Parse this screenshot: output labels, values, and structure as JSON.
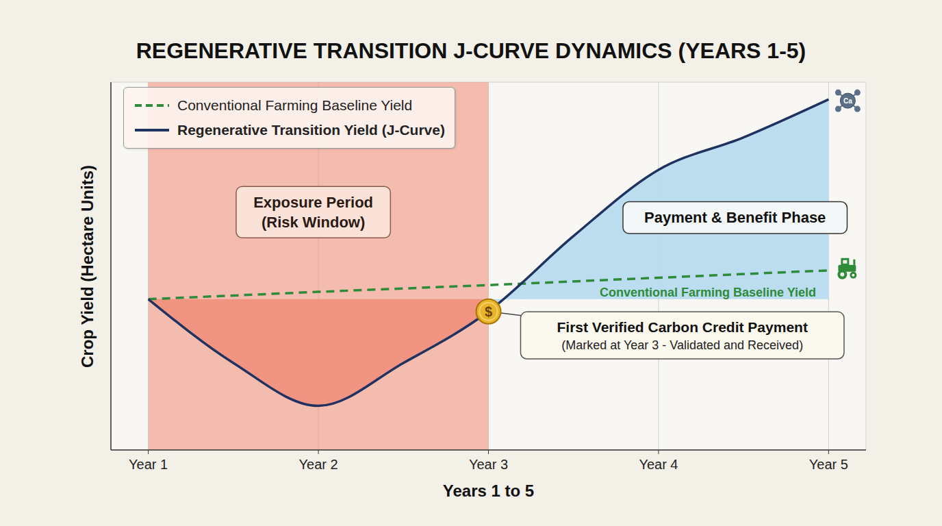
{
  "chart_data": {
    "type": "line",
    "title": "REGENERATIVE TRANSITION J-CURVE DYNAMICS (YEARS 1-5)",
    "x_label": "Years 1 to 5",
    "y_label": "Crop Yield (Hectare Units)",
    "xlim": [
      0.78,
      5.22
    ],
    "xticks": [
      {
        "value": 1,
        "label": "Year 1"
      },
      {
        "value": 2,
        "label": "Year 2"
      },
      {
        "value": 3,
        "label": "Year 3"
      },
      {
        "value": 4,
        "label": "Year 4"
      },
      {
        "value": 5,
        "label": "Year 5"
      }
    ],
    "ylim": [
      0,
      6
    ],
    "yticks": [
      0,
      1,
      2,
      3,
      4,
      5,
      6
    ],
    "tick_labels": "x",
    "grid": true,
    "legend": "upper left",
    "series": [
      {
        "name": "Conventional Farming Baseline Yield",
        "color": "#2e8b3a",
        "line_style": "dashed",
        "x": [
          1,
          2,
          3,
          4,
          5
        ],
        "values": [
          2.46,
          2.58,
          2.69,
          2.81,
          2.93
        ]
      },
      {
        "name": "Regenerative Transition Yield (J-Curve)",
        "color": "#1f3260",
        "line_style": "solid",
        "x": [
          1,
          1.5,
          2,
          2.5,
          3,
          3.5,
          4,
          4.5,
          5
        ],
        "values": [
          2.46,
          1.42,
          0.72,
          1.42,
          2.26,
          3.49,
          4.57,
          5.1,
          5.72
        ]
      }
    ],
    "regions": [
      {
        "label": "Exposure Period",
        "sublabel": "(Risk Window)",
        "x": [
          1,
          3
        ],
        "color": "#f08a76",
        "label_x": 1.97,
        "label_y": 3.88
      },
      {
        "label": "Payment & Benefit Phase",
        "x": [
          3,
          5
        ],
        "color": "#b9dcef",
        "label_x": 4.45,
        "label_y": 3.79
      }
    ],
    "callout": {
      "text": "First Verified Carbon Credit Payment",
      "subtext": "(Marked at Year 3 - Validated and Received)",
      "x": 4.14,
      "y": 1.87,
      "at_x": 3,
      "marker_label": "$"
    },
    "line_label": {
      "text": "Conventional Farming Baseline Yield",
      "x": 4.29,
      "y": 2.57,
      "color": "#2e8b3a"
    },
    "icon_label": "Ca"
  }
}
